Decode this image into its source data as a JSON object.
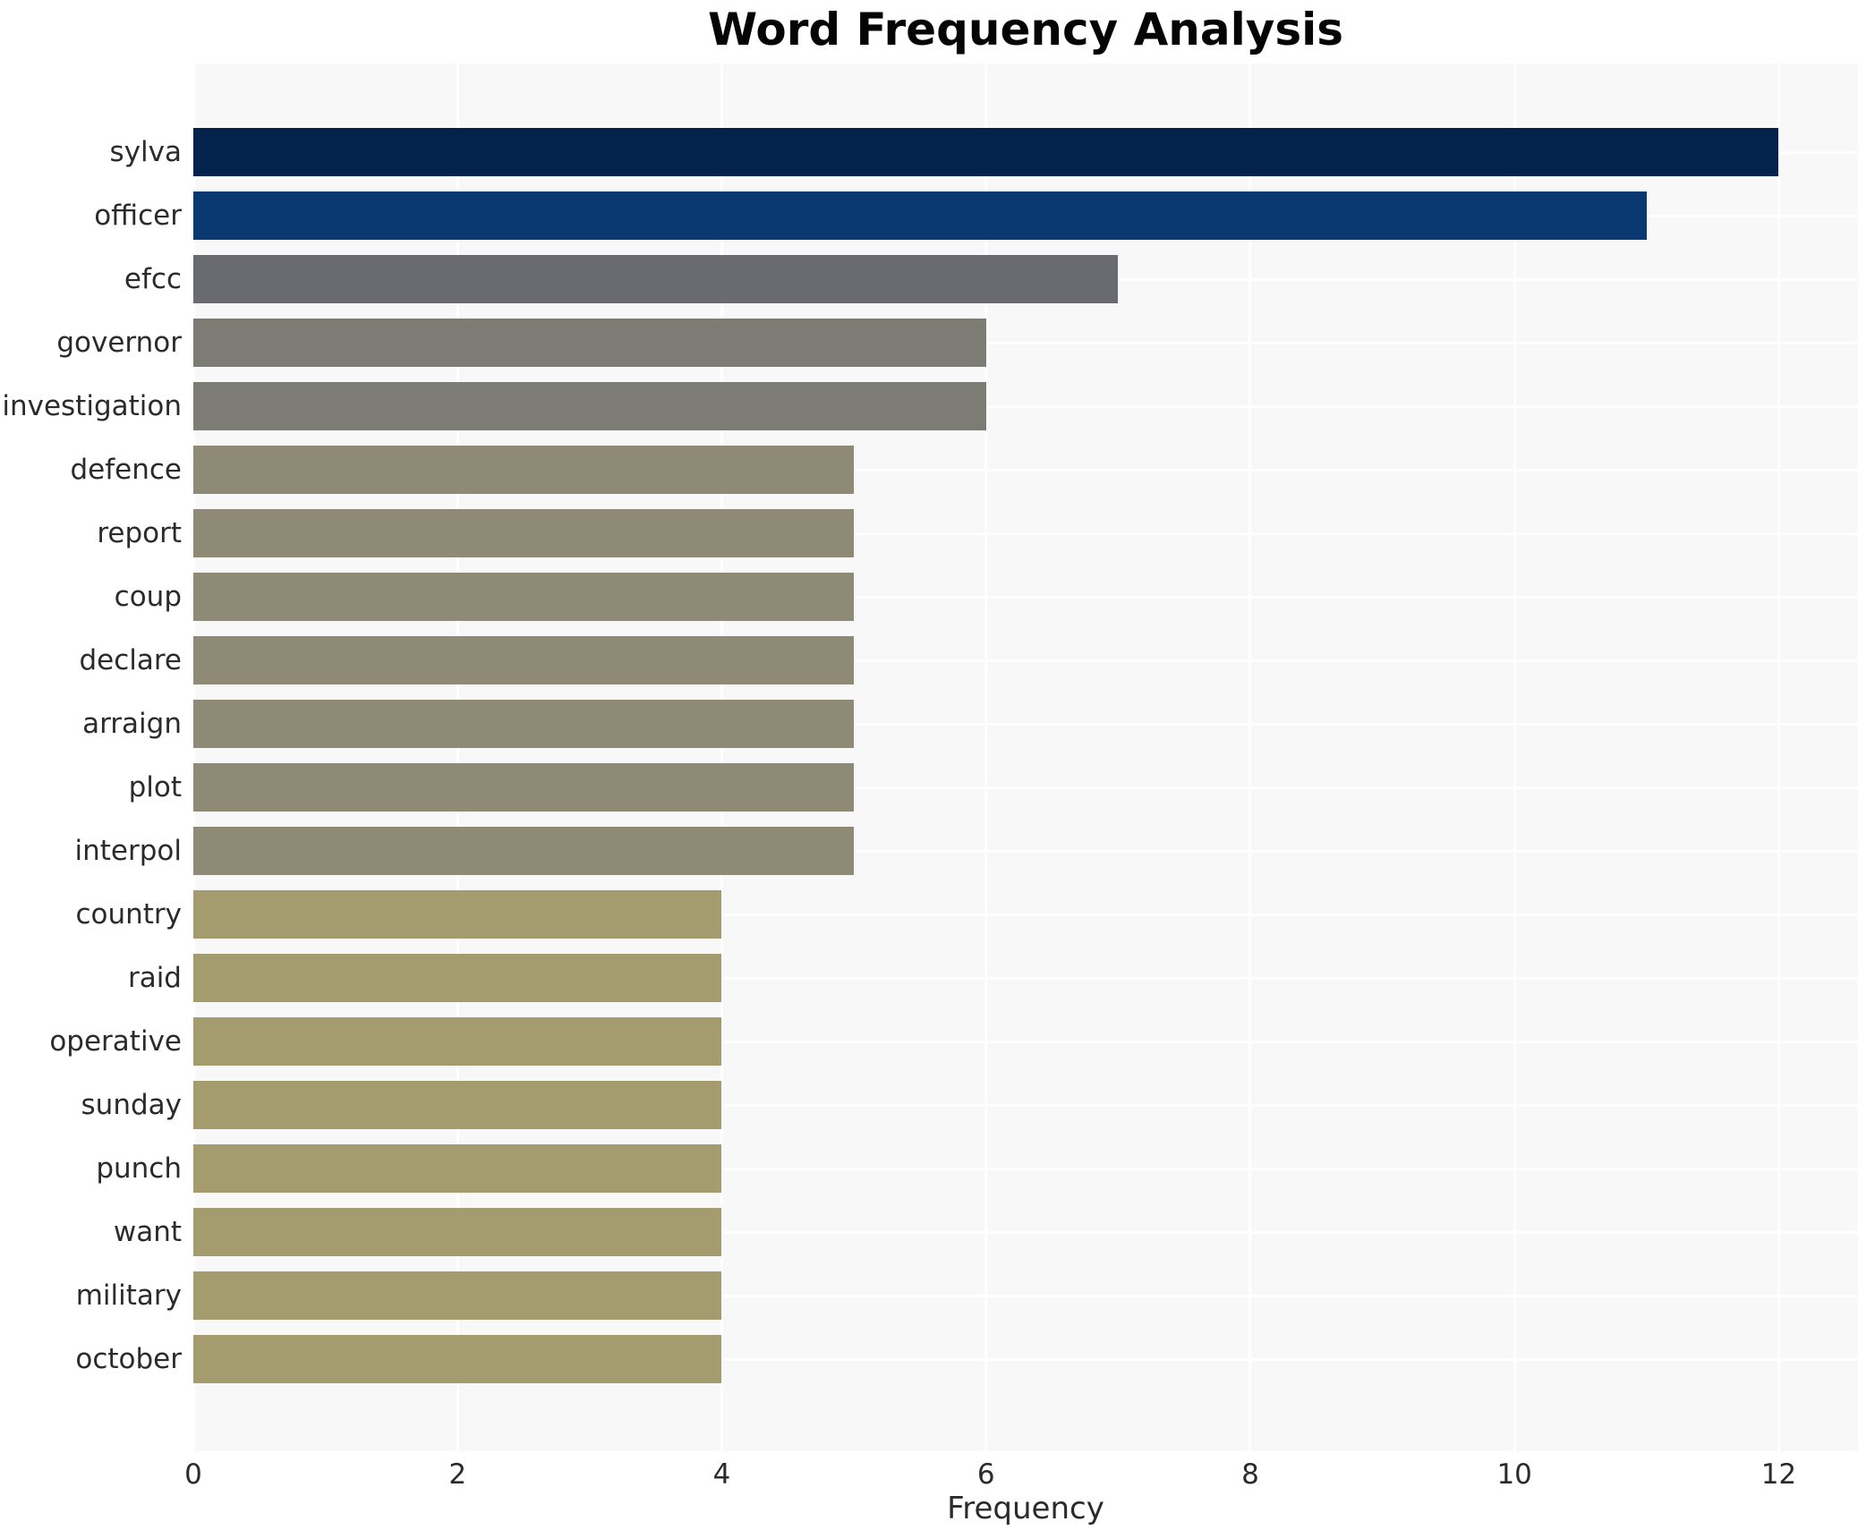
{
  "chart_data": {
    "type": "bar",
    "orientation": "horizontal",
    "title": "Word Frequency Analysis",
    "xlabel": "Frequency",
    "ylabel": "",
    "categories": [
      "sylva",
      "officer",
      "efcc",
      "governor",
      "investigation",
      "defence",
      "report",
      "coup",
      "declare",
      "arraign",
      "plot",
      "interpol",
      "country",
      "raid",
      "operative",
      "sunday",
      "punch",
      "want",
      "military",
      "october"
    ],
    "values": [
      12,
      11,
      7,
      6,
      6,
      5,
      5,
      5,
      5,
      5,
      5,
      5,
      4,
      4,
      4,
      4,
      4,
      4,
      4,
      4
    ],
    "bar_colors": [
      "#03234d",
      "#0a3871",
      "#696b70",
      "#7c7b74",
      "#7c7b74",
      "#8f8a76",
      "#8f8a76",
      "#8f8a76",
      "#8f8a76",
      "#8f8a76",
      "#8f8a76",
      "#8f8a76",
      "#a49c6f",
      "#a49c6f",
      "#a49c6f",
      "#a49c6f",
      "#a49c6f",
      "#a49c6f",
      "#a49c6f",
      "#a49c6f"
    ],
    "xlim": [
      0,
      12.6
    ],
    "xticks": [
      0,
      2,
      4,
      6,
      8,
      10,
      12
    ],
    "grid": true,
    "grid_color": "#ffffff",
    "plot_background": "#f8f8f8",
    "page_background": "#ffffff",
    "legend": "none"
  }
}
